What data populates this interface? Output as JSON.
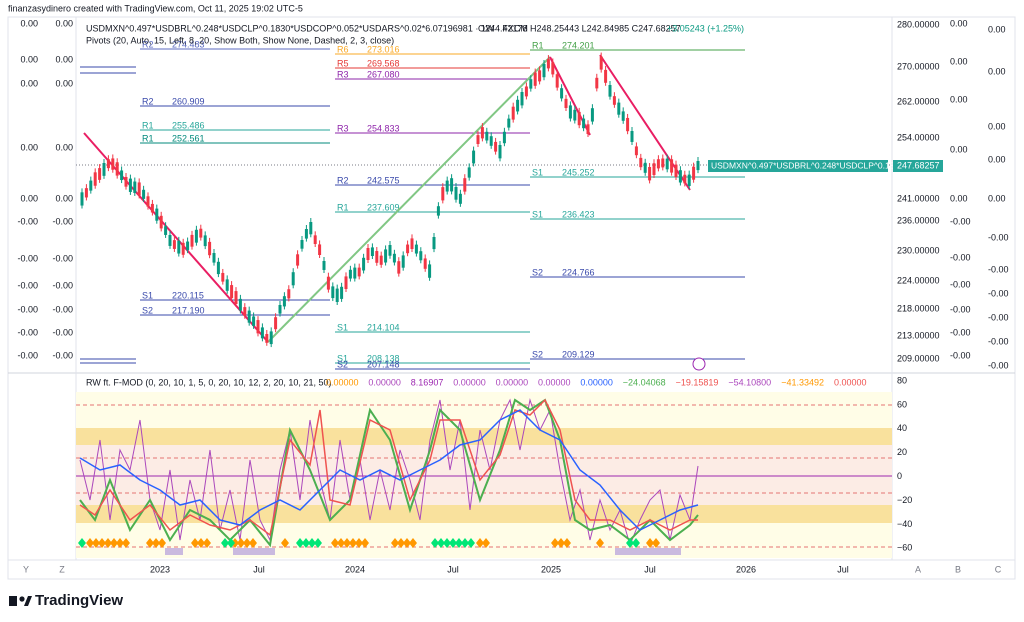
{
  "header": {
    "credit": "finanzasydinero created with TradingView.com, Oct 11, 2025 19:02 UTC-5",
    "symbol": "USDMXN^0.497*USDBRL^0.248*USDCLP^0.1830*USDCOP^0.052*USDARS^0.02*6.07196981 · 1W · FXCM",
    "ohlc": "O244.42178 H248.25443 L242.84985 C247.68257",
    "change": "+3.05243 (+1.25%)",
    "pivots": "Pivots (20, Auto, 15, Left, 8, 20, Show Both, Show None, Dashed, 2, 3, close)"
  },
  "price_axis": [
    "280.00000",
    "270.00000",
    "262.00000",
    "254.00000",
    "241.00000",
    "236.00000",
    "230.00000",
    "224.00000",
    "218.00000",
    "213.00000",
    "209.00000"
  ],
  "price_tag": {
    "symbol": "USDMXN^0.497*USDBRL^0.248*USDCLP^0.18...",
    "value": "247.68257"
  },
  "pivot_levels": [
    {
      "label": "R2",
      "value": "274.483"
    },
    {
      "label": "R6",
      "value": "273.016"
    },
    {
      "label": "R5",
      "value": "269.568"
    },
    {
      "label": "R3",
      "value": "267.080"
    },
    {
      "label": "R1",
      "value": "274.201"
    },
    {
      "label": "R2",
      "value": "260.909"
    },
    {
      "label": "R1",
      "value": "255.486"
    },
    {
      "label": "R1",
      "value": "252.561"
    },
    {
      "label": "R3",
      "value": "254.833"
    },
    {
      "label": "S1",
      "value": "245.252"
    },
    {
      "label": "R2",
      "value": "242.575"
    },
    {
      "label": "R1",
      "value": "237.609"
    },
    {
      "label": "S1",
      "value": "236.423"
    },
    {
      "label": "S2",
      "value": "224.766"
    },
    {
      "label": "S1",
      "value": "220.115"
    },
    {
      "label": "S2",
      "value": "217.190"
    },
    {
      "label": "S1",
      "value": "214.104"
    },
    {
      "label": "S2",
      "value": "209.129"
    },
    {
      "label": "S1",
      "value": "208.138"
    },
    {
      "label": "S2",
      "value": "207.148"
    }
  ],
  "left_scale_a": [
    "0.00",
    "0.00",
    "0.00",
    "0.00",
    "0.00",
    "-0.00",
    "-0.00",
    "-0.00",
    "-0.00",
    "-0.00",
    "-0.00"
  ],
  "left_scale_b": [
    "0.00",
    "0.00",
    "0.00",
    "0.00",
    "0.00",
    "-0.00",
    "-0.00",
    "-0.00",
    "-0.00",
    "-0.00",
    "-0.00"
  ],
  "right_scale_a": [
    "0.00",
    "0.00",
    "0.00",
    "0.00",
    "0.00",
    "-0.00",
    "-0.00",
    "-0.00",
    "-0.00",
    "-0.00",
    "-0.00"
  ],
  "right_scale_b": [
    "0.00",
    "0.00",
    "0.00",
    "0.00",
    "0.00",
    "-0.00",
    "-0.00",
    "-0.00",
    "-0.00",
    "-0.00",
    "-0.00"
  ],
  "indicator": {
    "title": "RW ft. F-MOD (0, 20, 10, 1, 5, 0, 20, 10, 12, 2, 20, 10, 21, 50)",
    "values": [
      "0.00000",
      "0.00000",
      "8.16907",
      "0.00000",
      "0.00000",
      "0.00000",
      "0.00000",
      "−24.04068",
      "−19.15819",
      "−54.10800",
      "−41.33492",
      "0.00000"
    ],
    "axis": [
      "80",
      "60",
      "40",
      "20",
      "0",
      "−20",
      "−40",
      "−60"
    ]
  },
  "time_axis": [
    "2023",
    "Jul",
    "2024",
    "Jul",
    "2025",
    "Jul",
    "2026",
    "Jul"
  ],
  "toolbar": {
    "left": [
      "Y",
      "Z"
    ],
    "right": [
      "A",
      "B",
      "C"
    ]
  },
  "footer": "TradingView"
}
